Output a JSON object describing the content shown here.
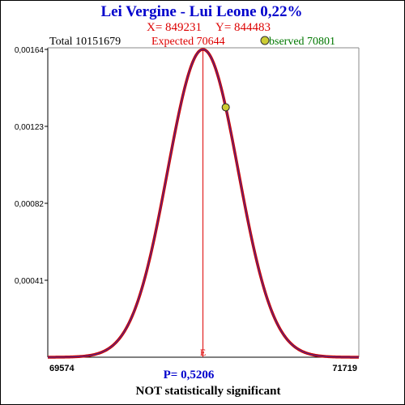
{
  "chart_data": {
    "type": "line",
    "title": "Lei Vergine - Lui Leone  0,22%",
    "x_value_text": "X= 849231",
    "y_value_text": "Y= 844483",
    "total_text": "Total  10151679",
    "expected_text": "Expected  70644",
    "observed_text": "bserved  70801",
    "expected": 70644,
    "observed": 70801,
    "xlim": [
      69574,
      71719
    ],
    "ylim": [
      0,
      0.00164
    ],
    "x_min_label": "69574",
    "x_max_label": "71719",
    "y_ticks": [
      {
        "value": 0.00041,
        "label": "0,00041"
      },
      {
        "value": 0.00082,
        "label": "0,00082"
      },
      {
        "value": 0.00123,
        "label": "0,00123"
      },
      {
        "value": 0.00164,
        "label": "0,00164"
      }
    ],
    "expected_marker_label": "E",
    "p_value_text": "P= 0,5206",
    "significance_text": "NOT statistically significant",
    "grid": false,
    "colors": {
      "title": "#0000cc",
      "xy_text": "#dd0000",
      "total": "#000000",
      "expected": "#dd0000",
      "observed": "#007700",
      "curve": "#cc0000",
      "curve_inner": "#3333aa",
      "observed_marker_fill": "#cccc33",
      "p_value": "#0000cc",
      "significance": "#000000"
    }
  }
}
